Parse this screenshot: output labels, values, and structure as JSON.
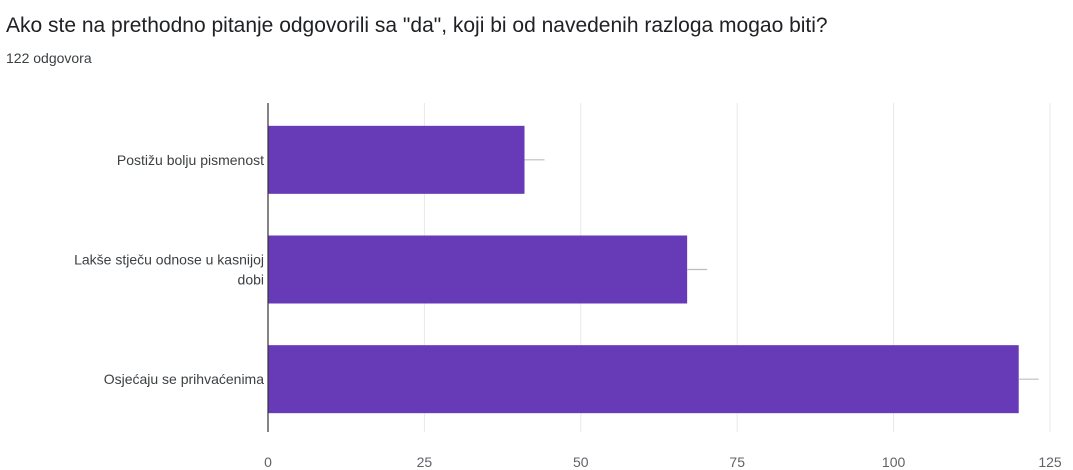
{
  "question": {
    "title": "Ako ste na prethodno pitanje odgovorili sa \"da\", koji bi od navedenih razloga mogao biti?",
    "response_count": "122 odgovora"
  },
  "chart_data": {
    "type": "bar",
    "orientation": "horizontal",
    "categories": [
      [
        "Postižu bolju pismenost"
      ],
      [
        "Lakše stječu odnose u kasnijoj",
        "dobi"
      ],
      [
        "Osjećaju se prihvaćenima"
      ]
    ],
    "values": [
      41,
      67,
      120
    ],
    "error_bar": true,
    "xlim": [
      0,
      125
    ],
    "xticks": [
      "0",
      "25",
      "50",
      "75",
      "100",
      "125"
    ],
    "grid": true,
    "bar_color": "#673ab7",
    "grid_color": "#e8e8e8",
    "axis_color": "#333333"
  }
}
